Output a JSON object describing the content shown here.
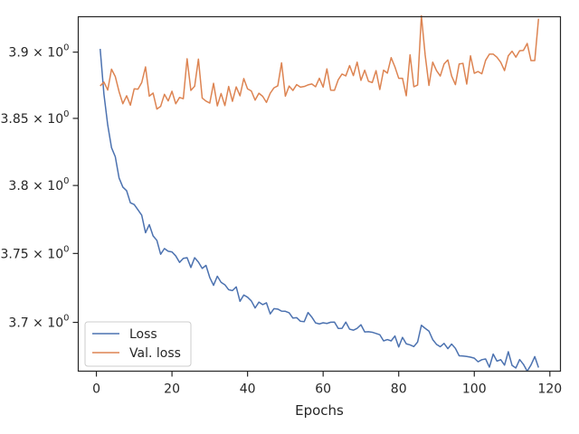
{
  "chart_data": {
    "type": "line",
    "title": "",
    "xlabel": "Epochs",
    "ylabel": "",
    "xlim": [
      -4.8,
      122.8
    ],
    "ylim": [
      3.665,
      3.927
    ],
    "ylog": true,
    "grid": false,
    "legend_position": "lower-left",
    "x_ticks": [
      {
        "value": 0,
        "label": "0"
      },
      {
        "value": 20,
        "label": "20"
      },
      {
        "value": 40,
        "label": "40"
      },
      {
        "value": 60,
        "label": "60"
      },
      {
        "value": 80,
        "label": "80"
      },
      {
        "value": 100,
        "label": "100"
      },
      {
        "value": 120,
        "label": "120"
      }
    ],
    "y_ticks": [
      {
        "value": 3.7,
        "label": "3.7 × 10",
        "exp": "0"
      },
      {
        "value": 3.75,
        "label": "3.75 × 10",
        "exp": "0"
      },
      {
        "value": 3.8,
        "label": "3.8 × 10",
        "exp": "0"
      },
      {
        "value": 3.85,
        "label": "3.85 × 10",
        "exp": "0"
      },
      {
        "value": 3.9,
        "label": "3.9 × 10",
        "exp": "0"
      }
    ],
    "x_start": 1,
    "series": [
      {
        "name": "Loss",
        "color": "#4c72b0",
        "values": [
          3.9025,
          3.8681,
          3.845,
          3.8281,
          3.8213,
          3.8056,
          3.7988,
          3.7961,
          3.7872,
          3.7859,
          3.782,
          3.778,
          3.7652,
          3.7711,
          3.7629,
          3.7596,
          3.7494,
          3.7536,
          3.7516,
          3.7511,
          3.7482,
          3.7435,
          3.7464,
          3.7469,
          3.7398,
          3.7469,
          3.7437,
          3.7391,
          3.7413,
          3.7325,
          3.7268,
          3.7334,
          3.729,
          3.7272,
          3.7236,
          3.723,
          3.7257,
          3.7152,
          3.7198,
          3.7182,
          3.7155,
          3.7104,
          3.7146,
          3.7128,
          3.7141,
          3.7061,
          3.7099,
          3.7096,
          3.7081,
          3.708,
          3.7069,
          3.7031,
          3.7034,
          3.7008,
          3.7005,
          3.7071,
          3.7038,
          3.6996,
          3.6989,
          3.6997,
          3.6992,
          3.7001,
          3.7002,
          3.6956,
          3.6957,
          3.7002,
          3.6951,
          3.6944,
          3.6957,
          3.6983,
          3.6931,
          3.6933,
          3.6929,
          3.692,
          3.6911,
          3.6867,
          3.6876,
          3.6867,
          3.6902,
          3.6823,
          3.6892,
          3.6846,
          3.6838,
          3.6826,
          3.6859,
          3.6979,
          3.6957,
          3.6937,
          3.6876,
          3.6842,
          3.6825,
          3.6849,
          3.6811,
          3.6844,
          3.6813,
          3.676,
          3.6758,
          3.6755,
          3.675,
          3.6743,
          3.6717,
          3.6732,
          3.6737,
          3.6679,
          3.6772,
          3.6722,
          3.6732,
          3.6693,
          3.6789,
          3.6691,
          3.6673,
          3.6733,
          3.6699,
          3.665,
          3.6694,
          3.6754,
          3.6676
        ]
      },
      {
        "name": "Val. loss",
        "color": "#dd8452",
        "values": [
          3.8744,
          3.8773,
          3.8713,
          3.8871,
          3.8815,
          3.8701,
          3.861,
          3.867,
          3.8599,
          3.8722,
          3.872,
          3.877,
          3.8888,
          3.8667,
          3.869,
          3.857,
          3.859,
          3.8681,
          3.8631,
          3.8704,
          3.861,
          3.8657,
          3.8648,
          3.895,
          3.871,
          3.8742,
          3.8947,
          3.8653,
          3.863,
          3.8615,
          3.8764,
          3.8594,
          3.8687,
          3.8596,
          3.874,
          3.8628,
          3.8737,
          3.867,
          3.88,
          3.8722,
          3.8706,
          3.8637,
          3.8689,
          3.8666,
          3.862,
          3.8689,
          3.873,
          3.8745,
          3.8919,
          3.8667,
          3.8743,
          3.871,
          3.8754,
          3.8735,
          3.874,
          3.8752,
          3.8759,
          3.8738,
          3.8802,
          3.8735,
          3.8873,
          3.8712,
          3.8711,
          3.8791,
          3.8834,
          3.882,
          3.8898,
          3.8822,
          3.8924,
          3.8786,
          3.8863,
          3.8779,
          3.877,
          3.886,
          3.8717,
          3.8863,
          3.8841,
          3.8958,
          3.8888,
          3.8802,
          3.8802,
          3.867,
          3.898,
          3.8738,
          3.8751,
          3.9277,
          3.8978,
          3.8748,
          3.8924,
          3.886,
          3.8819,
          3.891,
          3.8941,
          3.8819,
          3.8754,
          3.891,
          3.8915,
          3.8758,
          3.8972,
          3.884,
          3.8853,
          3.8836,
          3.8938,
          3.8985,
          3.8985,
          3.8961,
          3.8923,
          3.886,
          3.8973,
          3.9007,
          3.8962,
          3.9011,
          3.9013,
          3.9066,
          3.8936,
          3.8936,
          3.9255
        ]
      }
    ]
  }
}
